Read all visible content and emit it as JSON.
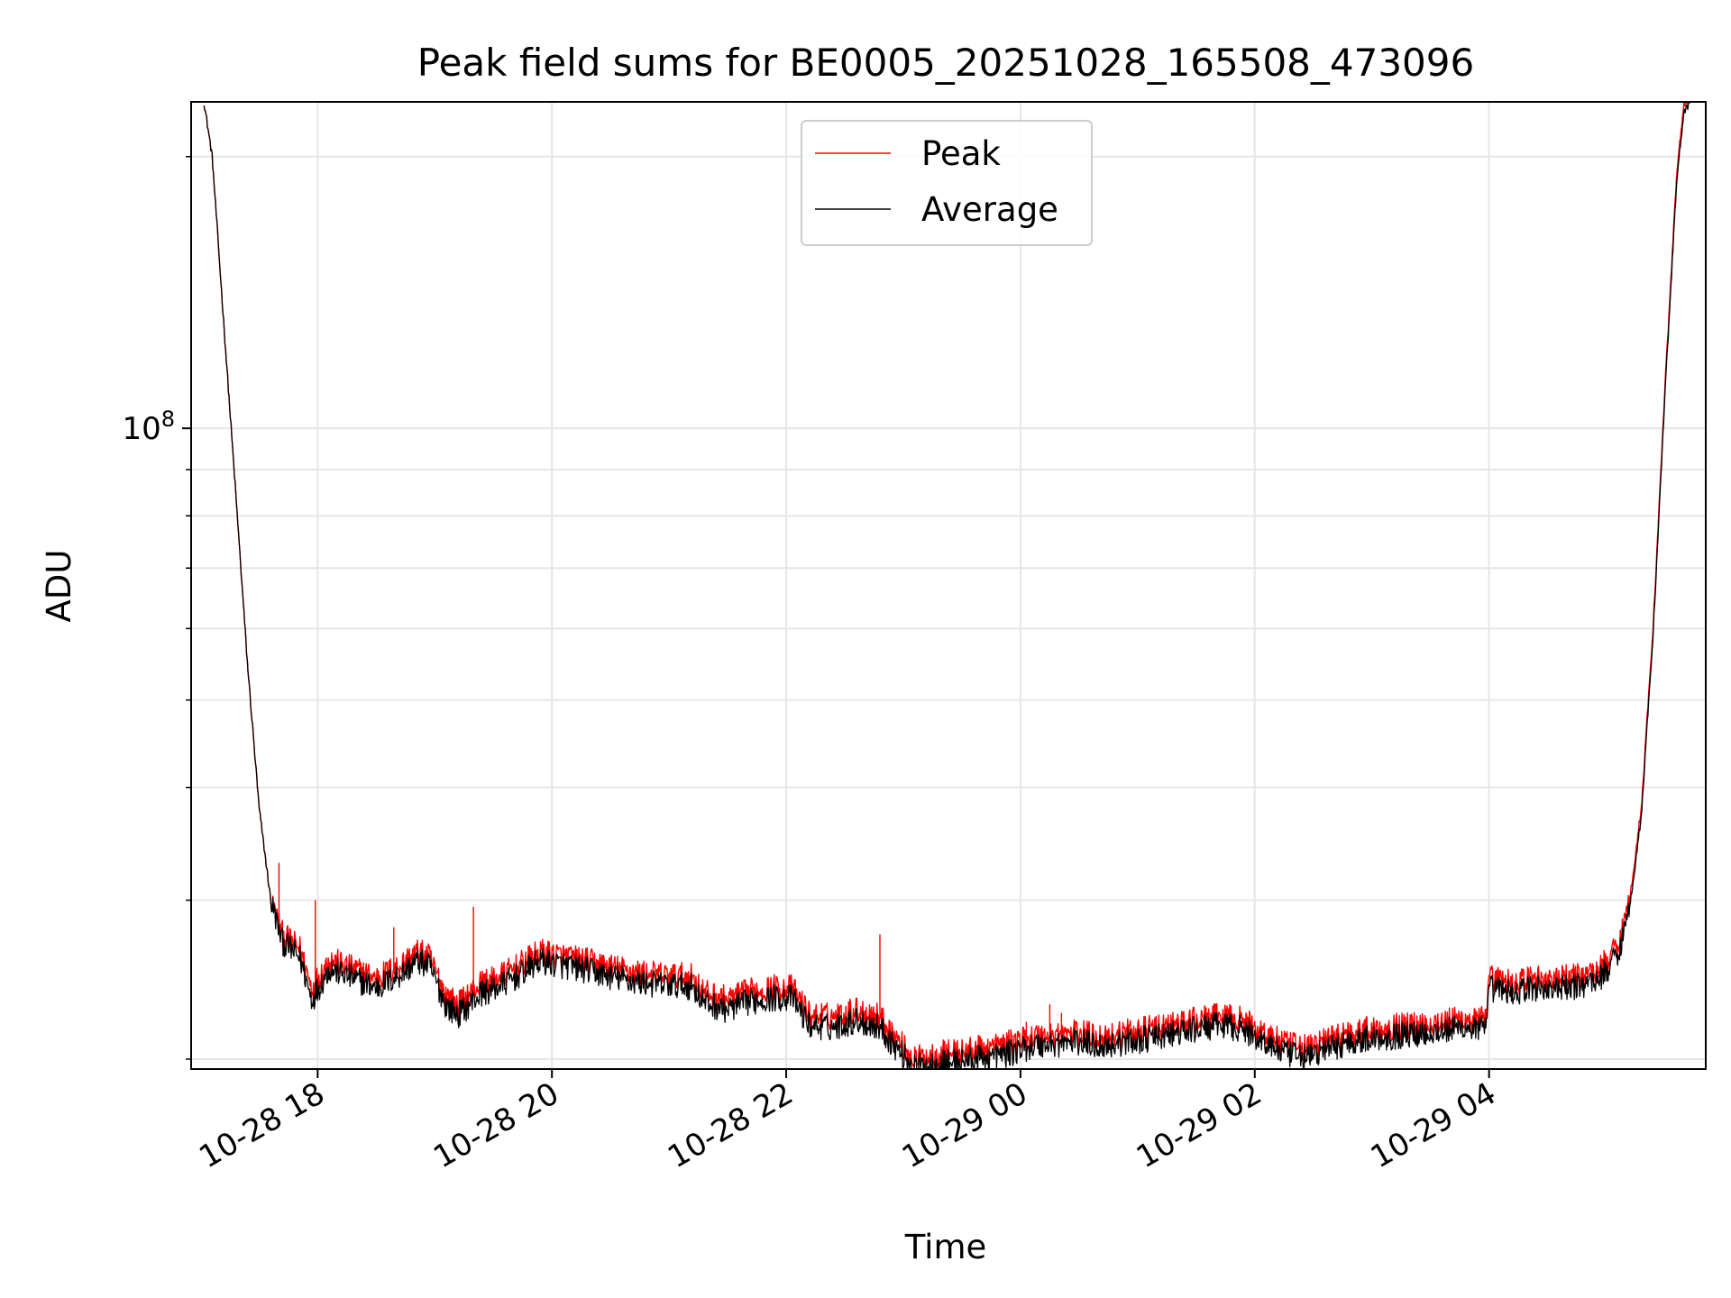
{
  "chart_data": {
    "type": "line",
    "title": "Peak field sums for BE0005_20251028_165508_473096",
    "xlabel": "Time",
    "ylabel": "ADU",
    "y_scale": "log",
    "ylim": [
      19500000,
      230000000
    ],
    "x_unit": "hours since 10-28 00:00",
    "xlim": [
      16.92,
      29.85
    ],
    "x_ticks": [
      {
        "value": 18,
        "label": "10-28 18"
      },
      {
        "value": 20,
        "label": "10-28 20"
      },
      {
        "value": 22,
        "label": "10-28 22"
      },
      {
        "value": 24,
        "label": "10-29 00"
      },
      {
        "value": 26,
        "label": "10-29 02"
      },
      {
        "value": 28,
        "label": "10-29 04"
      }
    ],
    "y_ticks": [
      {
        "value": 100000000,
        "base": "10",
        "exp": "8"
      }
    ],
    "y_minor_ticks": [
      20000000,
      30000000,
      40000000,
      50000000,
      60000000,
      70000000,
      80000000,
      90000000,
      200000000
    ],
    "grid": true,
    "legend": {
      "position": "top-center",
      "entries": [
        "Peak",
        "Average"
      ]
    },
    "series": [
      {
        "name": "Peak",
        "color": "#ff0000",
        "points": [
          [
            17.03,
            230000000
          ],
          [
            17.1,
            200000000
          ],
          [
            17.2,
            130000000
          ],
          [
            17.3,
            85000000
          ],
          [
            17.4,
            55000000
          ],
          [
            17.5,
            38000000
          ],
          [
            17.6,
            30000000
          ],
          [
            17.7,
            27500000
          ],
          [
            17.85,
            26500000
          ],
          [
            17.95,
            24000000
          ],
          [
            18.1,
            25800000
          ],
          [
            18.3,
            25200000
          ],
          [
            18.5,
            24600000
          ],
          [
            18.7,
            25400000
          ],
          [
            18.85,
            26300000
          ],
          [
            18.95,
            26000000
          ],
          [
            19.1,
            23500000
          ],
          [
            19.2,
            23000000
          ],
          [
            19.4,
            24300000
          ],
          [
            19.5,
            24500000
          ],
          [
            19.7,
            25300000
          ],
          [
            19.9,
            26300000
          ],
          [
            20.1,
            26000000
          ],
          [
            20.3,
            25700000
          ],
          [
            20.5,
            25300000
          ],
          [
            20.7,
            25000000
          ],
          [
            20.9,
            24800000
          ],
          [
            21.2,
            24700000
          ],
          [
            21.3,
            23700000
          ],
          [
            21.5,
            23300000
          ],
          [
            21.7,
            23800000
          ],
          [
            21.9,
            24000000
          ],
          [
            22.05,
            24000000
          ],
          [
            22.2,
            22400000
          ],
          [
            22.4,
            22300000
          ],
          [
            22.6,
            22700000
          ],
          [
            22.8,
            22300000
          ],
          [
            22.95,
            21000000
          ],
          [
            23.1,
            20000000
          ],
          [
            23.3,
            20300000
          ],
          [
            23.5,
            20400000
          ],
          [
            23.7,
            20600000
          ],
          [
            23.9,
            20800000
          ],
          [
            24.1,
            21200000
          ],
          [
            24.3,
            21300000
          ],
          [
            24.5,
            21400000
          ],
          [
            24.7,
            21200000
          ],
          [
            24.9,
            21400000
          ],
          [
            25.1,
            21600000
          ],
          [
            25.3,
            21800000
          ],
          [
            25.5,
            22100000
          ],
          [
            25.7,
            22300000
          ],
          [
            25.85,
            22200000
          ],
          [
            26.0,
            21700000
          ],
          [
            26.2,
            21000000
          ],
          [
            26.3,
            20700000
          ],
          [
            26.45,
            20600000
          ],
          [
            26.6,
            21000000
          ],
          [
            26.8,
            21400000
          ],
          [
            27.0,
            21600000
          ],
          [
            27.3,
            21800000
          ],
          [
            27.6,
            22000000
          ],
          [
            27.8,
            22200000
          ],
          [
            27.98,
            22100000
          ],
          [
            28.0,
            24600000
          ],
          [
            28.2,
            24300000
          ],
          [
            28.4,
            24600000
          ],
          [
            28.6,
            24500000
          ],
          [
            28.8,
            24800000
          ],
          [
            28.95,
            25200000
          ],
          [
            29.1,
            26800000
          ],
          [
            29.2,
            30000000
          ],
          [
            29.3,
            38000000
          ],
          [
            29.4,
            60000000
          ],
          [
            29.5,
            110000000
          ],
          [
            29.6,
            190000000
          ],
          [
            29.66,
            228000000
          ],
          [
            29.72,
            230000000
          ]
        ]
      },
      {
        "name": "Average",
        "color": "#000000",
        "points": [
          [
            17.03,
            230000000
          ],
          [
            17.1,
            200000000
          ],
          [
            17.2,
            130000000
          ],
          [
            17.3,
            85000000
          ],
          [
            17.4,
            55000000
          ],
          [
            17.5,
            38000000
          ],
          [
            17.6,
            30000000
          ],
          [
            17.7,
            27000000
          ],
          [
            17.85,
            25900000
          ],
          [
            17.95,
            23300000
          ],
          [
            18.1,
            25200000
          ],
          [
            18.3,
            24600000
          ],
          [
            18.5,
            24000000
          ],
          [
            18.7,
            24800000
          ],
          [
            18.85,
            25700000
          ],
          [
            18.95,
            25400000
          ],
          [
            19.1,
            22900000
          ],
          [
            19.2,
            22400000
          ],
          [
            19.4,
            23700000
          ],
          [
            19.5,
            23900000
          ],
          [
            19.7,
            24700000
          ],
          [
            19.9,
            25700000
          ],
          [
            20.1,
            25400000
          ],
          [
            20.3,
            25100000
          ],
          [
            20.5,
            24700000
          ],
          [
            20.7,
            24400000
          ],
          [
            20.9,
            24200000
          ],
          [
            21.2,
            24100000
          ],
          [
            21.3,
            23100000
          ],
          [
            21.5,
            22700000
          ],
          [
            21.7,
            23200000
          ],
          [
            21.9,
            23400000
          ],
          [
            22.05,
            23400000
          ],
          [
            22.2,
            21800000
          ],
          [
            22.4,
            21700000
          ],
          [
            22.6,
            22100000
          ],
          [
            22.8,
            21700000
          ],
          [
            22.95,
            20500000
          ],
          [
            23.1,
            19600000
          ],
          [
            23.3,
            19800000
          ],
          [
            23.5,
            19900000
          ],
          [
            23.7,
            20100000
          ],
          [
            23.9,
            20300000
          ],
          [
            24.1,
            20700000
          ],
          [
            24.3,
            20800000
          ],
          [
            24.5,
            20900000
          ],
          [
            24.7,
            20700000
          ],
          [
            24.9,
            20900000
          ],
          [
            25.1,
            21100000
          ],
          [
            25.3,
            21300000
          ],
          [
            25.5,
            21600000
          ],
          [
            25.7,
            21800000
          ],
          [
            25.85,
            21700000
          ],
          [
            26.0,
            21200000
          ],
          [
            26.2,
            20500000
          ],
          [
            26.3,
            20200000
          ],
          [
            26.45,
            20100000
          ],
          [
            26.6,
            20500000
          ],
          [
            26.8,
            20900000
          ],
          [
            27.0,
            21100000
          ],
          [
            27.3,
            21300000
          ],
          [
            27.6,
            21500000
          ],
          [
            27.8,
            21700000
          ],
          [
            27.98,
            21600000
          ],
          [
            28.0,
            24000000
          ],
          [
            28.2,
            23700000
          ],
          [
            28.4,
            24000000
          ],
          [
            28.6,
            23900000
          ],
          [
            28.8,
            24200000
          ],
          [
            28.95,
            24600000
          ],
          [
            29.1,
            26200000
          ],
          [
            29.2,
            29400000
          ],
          [
            29.3,
            37200000
          ],
          [
            29.4,
            58800000
          ],
          [
            29.5,
            107800000
          ],
          [
            29.6,
            186000000
          ],
          [
            29.66,
            223000000
          ],
          [
            29.72,
            230000000
          ]
        ]
      }
    ],
    "spikes": [
      {
        "x": 17.67,
        "y": 33000000
      },
      {
        "x": 17.98,
        "y": 30000000
      },
      {
        "x": 18.65,
        "y": 28000000
      },
      {
        "x": 19.33,
        "y": 29500000
      },
      {
        "x": 22.8,
        "y": 27500000
      },
      {
        "x": 24.05,
        "y": 22000000
      },
      {
        "x": 24.25,
        "y": 23000000
      },
      {
        "x": 24.35,
        "y": 22500000
      }
    ]
  }
}
